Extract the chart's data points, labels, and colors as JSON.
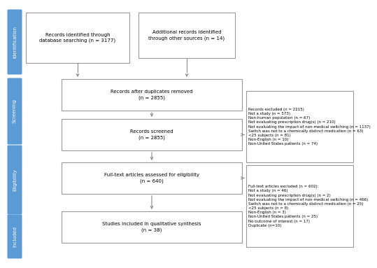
{
  "sidebar_color": "#5b9bd5",
  "sidebar_text_color": "#ffffff",
  "box_edge_color": "#999999",
  "box_fill_color": "#ffffff",
  "arrow_color": "#888888",
  "text_color": "#000000",
  "bg_color": "#ffffff",
  "sidebar_labels": [
    "Identification",
    "Screening",
    "Eligibility",
    "Included"
  ],
  "box1_text": "Records identified through\ndatabase searching (n = 3177)",
  "box2_text": "Additional records identified\nthrough other sources (n = 14)",
  "box3_text": "Records after duplicates removed\n(n = 2855)",
  "box4_text": "Records screened\n(n = 2855)",
  "box5_text": "Full-text articles assessed for eligibility\n(n = 640)",
  "box6_text": "Studies included in qualitative synthesis\n(n = 38)",
  "excl1_text": "Records excluded (n = 2215)\nNot a study (n = 573)\nNon-human population (n = 67)\nNot evaluating prescription drug(s) (n = 210)\nNot evaluating the impact of non-medical switching (n = 1137)\nSwitch was not to a chemically distinct medication (n = 63)\n<25 subjects (n = 81)\nNon-English (n = 10)\nNon-United States patients (n = 74)",
  "excl2_text": "Full-text articles excluded (n = 602):\nNot a study (n = 46)\nNot evaluating prescription drug(s) (n = 2)\nNot evaluating the impact of non-medical switching (n = 466)\nSwitch was not to a chemically distinct medication (n = 25)\n<25 subjects (n = 8)\nNon-English (n = 3)\nNon-United States patients (n = 25)\nNo outcome of interest (n = 17)\nDuplicate (n=10)"
}
